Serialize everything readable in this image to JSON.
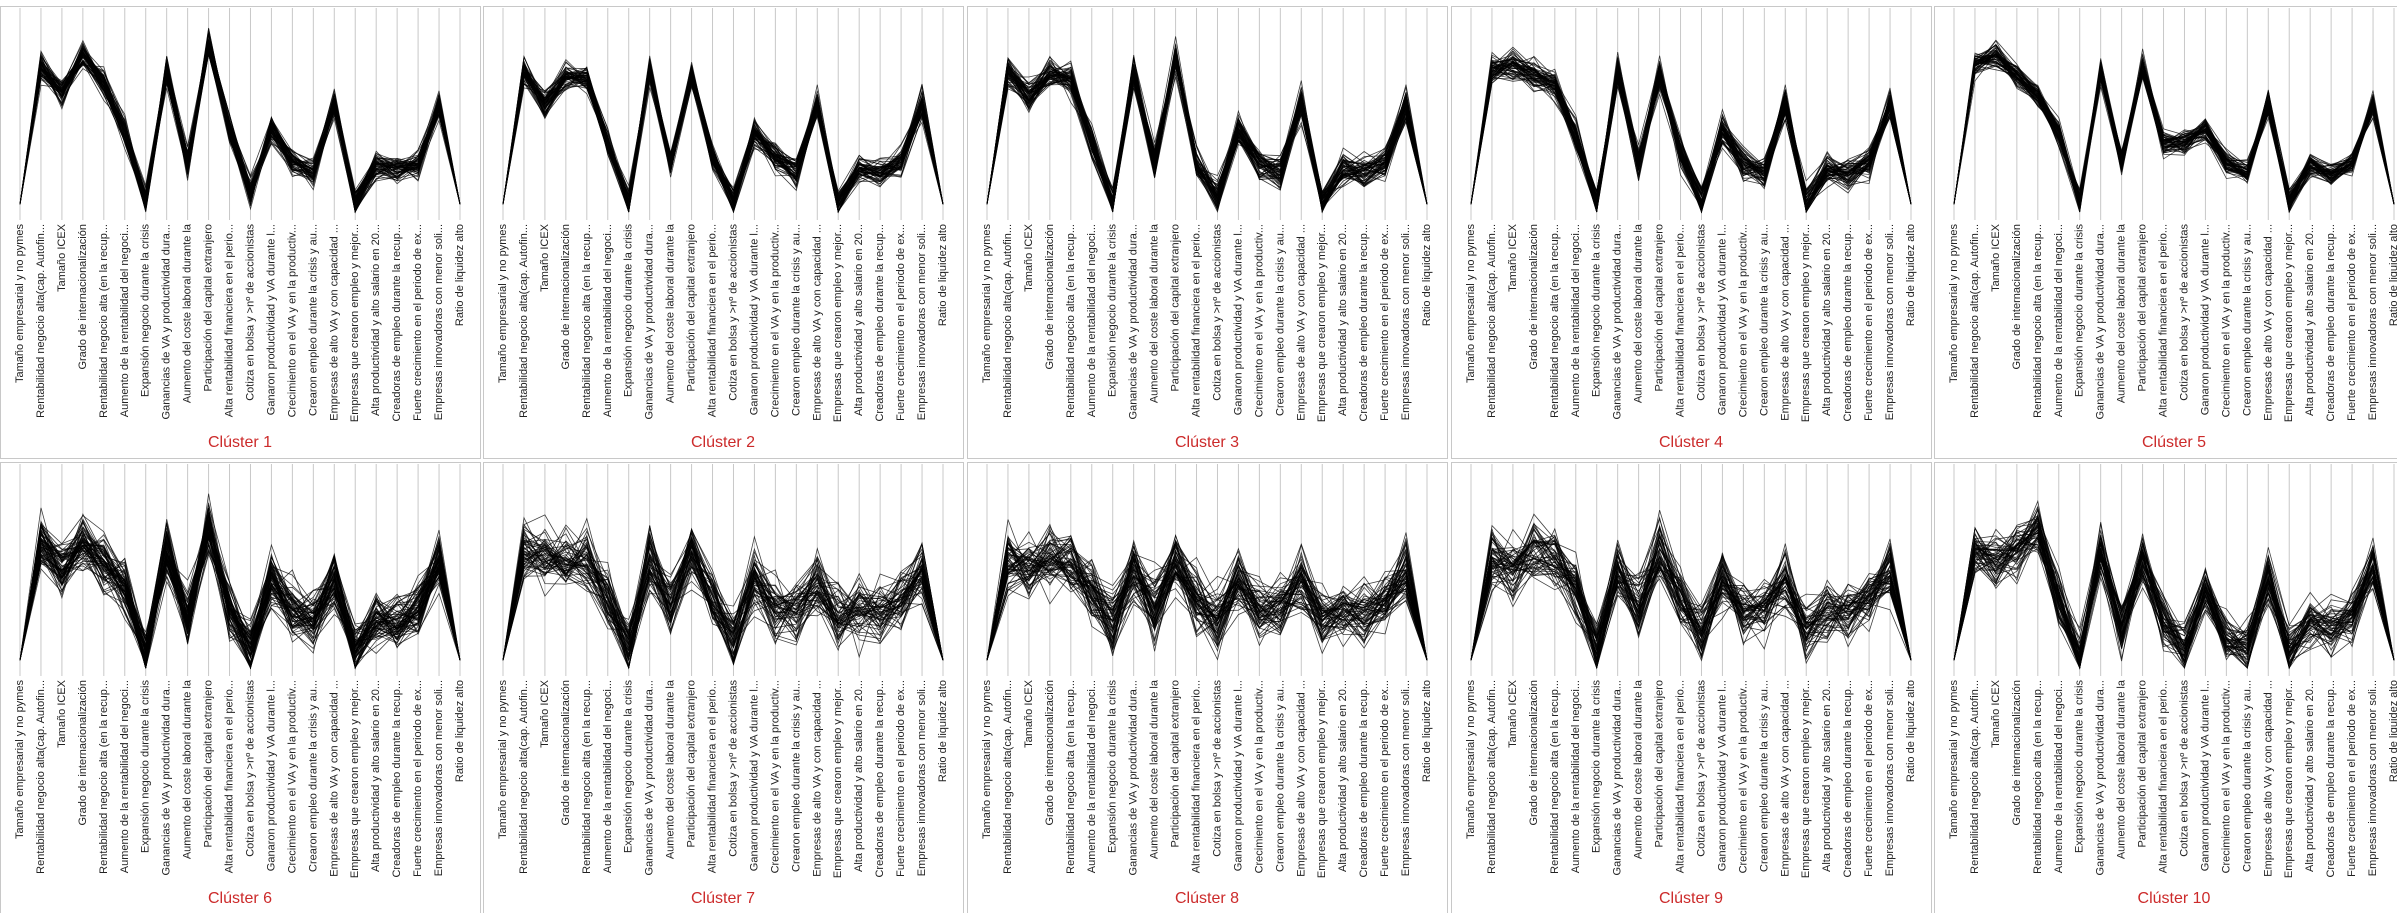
{
  "colors": {
    "cluster_title": "#cc2a2a",
    "lines": "#000000",
    "axis_lines": "#c8c8c8",
    "frame": "#c8c8c8",
    "label_text": "#222222"
  },
  "variable_labels": [
    "Tamaño empresarial y no pymes",
    "Rentabilidad negocio alta(cap. Autofin...",
    "Tamaño ICEX",
    "Grado de internacionalización",
    "Rentabilidad negocio alta (en la recup...",
    "Aumento de la rentabilidad del negoci...",
    "Expansión negocio durante la crisis",
    "Ganancias de VA y productividad dura...",
    "Aumento del coste laboral durante la",
    "Participación del capital extranjero",
    "Alta rentabilidad financiera en el perio...",
    "Cotiza en bolsa y >nº de accionistas",
    "Ganaron productividad y VA durante l...",
    "Crecimiento en el VA y en la productiv...",
    "Crearon empleo durante la crisis y au...",
    "Empresas de alto VA y con capacidad ...",
    "Empresas que crearon empleo y mejor...",
    "Alta productividad y alto salario en 20...",
    "Creadoras de empleo durante la recup...",
    "Fuerte crecimiento en el periodo de ex...",
    "Empresas innovadoras con menor soli...",
    "Ratio de liquidez alto"
  ],
  "chart_data": [
    {
      "type": "line",
      "title": "Clúster 1",
      "xlabel": "",
      "ylabel": "",
      "grid": true,
      "lines_per_cluster": 60,
      "profile": [
        0.04,
        0.74,
        0.6,
        0.8,
        0.65,
        0.41,
        0.05,
        0.72,
        0.25,
        0.86,
        0.42,
        0.1,
        0.42,
        0.25,
        0.2,
        0.55,
        0.05,
        0.24,
        0.22,
        0.25,
        0.55,
        0.04
      ],
      "spread": 0.07
    },
    {
      "type": "line",
      "title": "Clúster 2",
      "xlabel": "",
      "ylabel": "",
      "grid": true,
      "lines_per_cluster": 60,
      "profile": [
        0.04,
        0.72,
        0.55,
        0.7,
        0.68,
        0.35,
        0.05,
        0.72,
        0.25,
        0.7,
        0.28,
        0.06,
        0.4,
        0.28,
        0.2,
        0.55,
        0.05,
        0.22,
        0.2,
        0.25,
        0.55,
        0.04
      ],
      "spread": 0.07
    },
    {
      "type": "line",
      "title": "Clúster 3",
      "xlabel": "",
      "ylabel": "",
      "grid": true,
      "lines_per_cluster": 60,
      "profile": [
        0.04,
        0.72,
        0.6,
        0.7,
        0.68,
        0.35,
        0.05,
        0.72,
        0.25,
        0.78,
        0.25,
        0.08,
        0.42,
        0.25,
        0.2,
        0.55,
        0.05,
        0.22,
        0.2,
        0.25,
        0.55,
        0.04
      ],
      "spread": 0.08
    },
    {
      "type": "line",
      "title": "Clúster 4",
      "xlabel": "",
      "ylabel": "",
      "grid": true,
      "lines_per_cluster": 60,
      "profile": [
        0.04,
        0.72,
        0.75,
        0.7,
        0.65,
        0.4,
        0.05,
        0.72,
        0.25,
        0.7,
        0.3,
        0.06,
        0.42,
        0.25,
        0.2,
        0.55,
        0.05,
        0.22,
        0.2,
        0.25,
        0.55,
        0.04
      ],
      "spread": 0.08
    },
    {
      "type": "line",
      "title": "Clúster 5",
      "xlabel": "",
      "ylabel": "",
      "grid": true,
      "lines_per_cluster": 60,
      "profile": [
        0.04,
        0.75,
        0.8,
        0.7,
        0.6,
        0.4,
        0.05,
        0.72,
        0.25,
        0.75,
        0.35,
        0.35,
        0.42,
        0.25,
        0.2,
        0.55,
        0.05,
        0.24,
        0.2,
        0.25,
        0.55,
        0.04
      ],
      "spread": 0.06
    },
    {
      "type": "line",
      "title": "Clúster 6",
      "xlabel": "",
      "ylabel": "",
      "grid": true,
      "lines_per_cluster": 70,
      "profile": [
        0.04,
        0.65,
        0.5,
        0.65,
        0.55,
        0.4,
        0.05,
        0.62,
        0.25,
        0.72,
        0.3,
        0.1,
        0.45,
        0.3,
        0.25,
        0.45,
        0.1,
        0.25,
        0.22,
        0.3,
        0.55,
        0.04
      ],
      "spread": 0.14
    },
    {
      "type": "line",
      "title": "Clúster 7",
      "xlabel": "",
      "ylabel": "",
      "grid": true,
      "lines_per_cluster": 55,
      "profile": [
        0.04,
        0.6,
        0.55,
        0.55,
        0.55,
        0.35,
        0.1,
        0.55,
        0.3,
        0.6,
        0.35,
        0.15,
        0.45,
        0.3,
        0.3,
        0.45,
        0.25,
        0.3,
        0.28,
        0.35,
        0.5,
        0.04
      ],
      "spread": 0.16
    },
    {
      "type": "line",
      "title": "Clúster 8",
      "xlabel": "",
      "ylabel": "",
      "grid": true,
      "lines_per_cluster": 60,
      "profile": [
        0.04,
        0.55,
        0.5,
        0.55,
        0.55,
        0.4,
        0.25,
        0.5,
        0.3,
        0.55,
        0.35,
        0.25,
        0.45,
        0.3,
        0.3,
        0.45,
        0.25,
        0.3,
        0.28,
        0.35,
        0.5,
        0.04
      ],
      "spread": 0.16
    },
    {
      "type": "line",
      "title": "Clúster 9",
      "xlabel": "",
      "ylabel": "",
      "grid": true,
      "lines_per_cluster": 55,
      "profile": [
        0.04,
        0.55,
        0.5,
        0.6,
        0.55,
        0.4,
        0.1,
        0.5,
        0.3,
        0.6,
        0.35,
        0.2,
        0.45,
        0.3,
        0.3,
        0.45,
        0.2,
        0.3,
        0.28,
        0.35,
        0.5,
        0.04
      ],
      "spread": 0.15
    },
    {
      "type": "line",
      "title": "Clúster 10",
      "xlabel": "",
      "ylabel": "",
      "grid": true,
      "lines_per_cluster": 55,
      "profile": [
        0.04,
        0.6,
        0.55,
        0.6,
        0.7,
        0.35,
        0.05,
        0.6,
        0.2,
        0.55,
        0.25,
        0.1,
        0.4,
        0.15,
        0.1,
        0.45,
        0.1,
        0.25,
        0.2,
        0.25,
        0.55,
        0.04
      ],
      "spread": 0.13
    }
  ]
}
